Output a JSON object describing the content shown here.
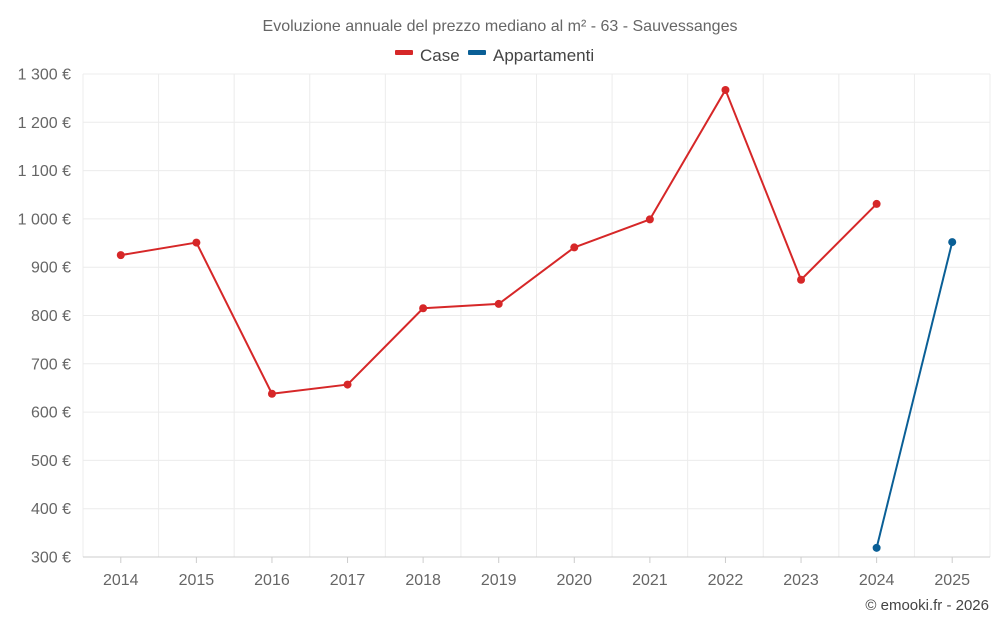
{
  "chart_data": {
    "type": "line",
    "title": "Evoluzione annuale del prezzo mediano al m² - 63 - Sauvessanges",
    "categories": [
      "2014",
      "2015",
      "2016",
      "2017",
      "2018",
      "2019",
      "2020",
      "2021",
      "2022",
      "2023",
      "2024",
      "2025"
    ],
    "y_tick_labels": [
      "300 €",
      "400 €",
      "500 €",
      "600 €",
      "700 €",
      "800 €",
      "900 €",
      "1 000 €",
      "1 100 €",
      "1 200 €",
      "1 300 €"
    ],
    "ylim": [
      300,
      1300
    ],
    "grid": true,
    "legend_position": "top-center",
    "series": [
      {
        "name": "Case",
        "color": "#d62728",
        "values": [
          925,
          951,
          638,
          657,
          815,
          824,
          941,
          999,
          1267,
          874,
          1031,
          null
        ]
      },
      {
        "name": "Appartamenti",
        "color": "#0a5f96",
        "values": [
          null,
          null,
          null,
          null,
          null,
          null,
          null,
          null,
          null,
          null,
          319,
          952
        ]
      }
    ],
    "credit": "© emooki.fr - 2026"
  }
}
